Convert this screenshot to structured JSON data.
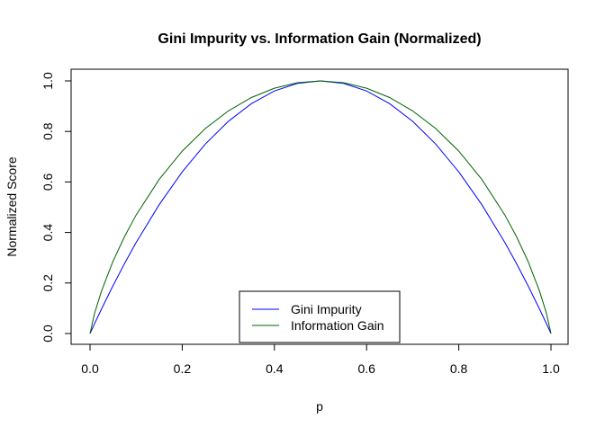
{
  "chart_data": {
    "type": "line",
    "title": "Gini Impurity vs. Information Gain (Normalized)",
    "xlabel": "p",
    "ylabel": "Normalized Score",
    "xlim": [
      0,
      1
    ],
    "ylim": [
      0,
      1
    ],
    "x_ticks": [
      "0.0",
      "0.2",
      "0.4",
      "0.6",
      "0.8",
      "1.0"
    ],
    "y_ticks": [
      "0.0",
      "0.2",
      "0.4",
      "0.6",
      "0.8",
      "1.0"
    ],
    "grid": false,
    "legend_position": "bottom-center",
    "x": [
      0,
      0.01,
      0.025,
      0.05,
      0.075,
      0.1,
      0.15,
      0.2,
      0.25,
      0.3,
      0.35,
      0.4,
      0.45,
      0.5,
      0.55,
      0.6,
      0.65,
      0.7,
      0.75,
      0.8,
      0.85,
      0.9,
      0.925,
      0.95,
      0.975,
      0.99,
      1
    ],
    "series": [
      {
        "name": "Gini Impurity",
        "color": "#0000ff",
        "values": [
          0,
          0.0396,
          0.0975,
          0.19,
          0.2775,
          0.36,
          0.51,
          0.64,
          0.75,
          0.84,
          0.91,
          0.96,
          0.99,
          1,
          0.99,
          0.96,
          0.91,
          0.84,
          0.75,
          0.64,
          0.51,
          0.36,
          0.2775,
          0.19,
          0.0975,
          0.0396,
          0
        ]
      },
      {
        "name": "Information Gain",
        "color": "#006400",
        "values": [
          0,
          0.0808,
          0.1687,
          0.2864,
          0.3843,
          0.469,
          0.6098,
          0.7219,
          0.8113,
          0.8813,
          0.9341,
          0.971,
          0.9928,
          1,
          0.9928,
          0.971,
          0.9341,
          0.8813,
          0.8113,
          0.7219,
          0.6098,
          0.469,
          0.3843,
          0.2864,
          0.1687,
          0.0808,
          0
        ]
      }
    ]
  }
}
